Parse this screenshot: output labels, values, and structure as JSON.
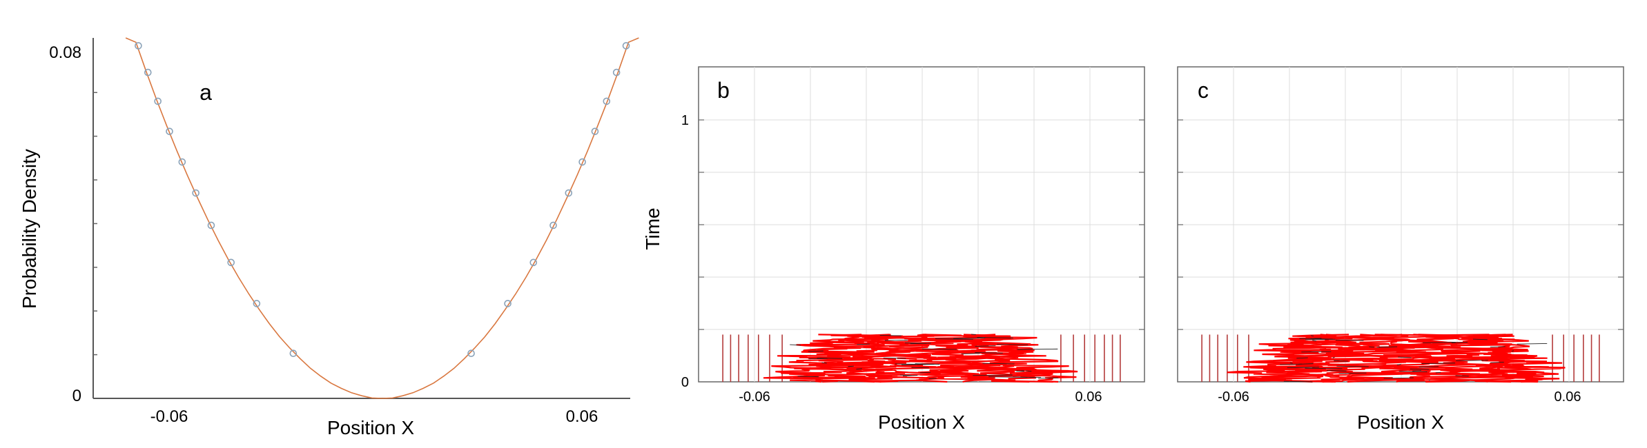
{
  "chart_data": [
    {
      "panel": "a",
      "type": "line",
      "xlabel": "Position X",
      "ylabel": "Probability Density",
      "x_ticks": [
        -0.06,
        0.06
      ],
      "x_tick_labels": [
        "-0.06",
        "0.06"
      ],
      "y_ticks": [
        0,
        0.08
      ],
      "y_tick_labels": [
        "0",
        "0.08"
      ],
      "xlim": [
        -0.0845,
        0.0725
      ],
      "ylim": [
        0,
        0.0825
      ],
      "series": [
        {
          "kind": "curve",
          "formula_note": "symmetric parabola",
          "x": [
            -0.075,
            -0.072,
            -0.069,
            -0.066,
            -0.063,
            -0.06,
            -0.057,
            -0.054,
            -0.051,
            -0.048,
            -0.045,
            -0.042,
            -0.039,
            -0.036,
            -0.033,
            -0.03,
            -0.027,
            -0.024,
            -0.021,
            -0.018,
            -0.015,
            -0.012,
            -0.009,
            -0.006,
            -0.003,
            0.0,
            0.003,
            0.006,
            0.009,
            0.012,
            0.015,
            0.018,
            0.021,
            0.024,
            0.027,
            0.03,
            0.033,
            0.036,
            0.039,
            0.042,
            0.045,
            0.048,
            0.051,
            0.054,
            0.057,
            0.06,
            0.063,
            0.066,
            0.069,
            0.072,
            0.075
          ],
          "y": [
            0.0884,
            0.0815,
            0.0748,
            0.0684,
            0.0624,
            0.0566,
            0.0511,
            0.0459,
            0.0409,
            0.0362,
            0.0318,
            0.0277,
            0.0239,
            0.0204,
            0.0171,
            0.0141,
            0.0115,
            0.0091,
            0.0069,
            0.0051,
            0.0035,
            0.0023,
            0.0013,
            0.0006,
            0.0001,
            0.0,
            0.0001,
            0.0006,
            0.0013,
            0.0023,
            0.0035,
            0.0051,
            0.0069,
            0.0091,
            0.0115,
            0.0141,
            0.0171,
            0.0204,
            0.0239,
            0.0277,
            0.0318,
            0.0362,
            0.0409,
            0.0459,
            0.0511,
            0.0566,
            0.0624,
            0.0684,
            0.0748,
            0.0815,
            0.0884
          ]
        },
        {
          "kind": "markers",
          "x": [
            -0.0713,
            -0.0685,
            -0.0656,
            -0.0622,
            -0.0585,
            -0.0545,
            -0.05,
            -0.0442,
            -0.0367,
            -0.026,
            0.026,
            0.0367,
            0.0442,
            0.05,
            0.0545,
            0.0585,
            0.0622,
            0.0656,
            0.0685,
            0.0713
          ],
          "y": [
            0.0807,
            0.0746,
            0.068,
            0.0611,
            0.0541,
            0.047,
            0.0396,
            0.0311,
            0.0217,
            0.0103,
            0.0103,
            0.0217,
            0.0311,
            0.0396,
            0.047,
            0.0541,
            0.0611,
            0.068,
            0.0746,
            0.0807
          ]
        }
      ],
      "colors": {
        "curve": "#d9773f",
        "marker": "#8aa2b8"
      }
    },
    {
      "panel": "b",
      "type": "line",
      "xlabel": "Position X",
      "ylabel": "Time",
      "x_ticks": [
        -0.06,
        0.06
      ],
      "x_tick_labels": [
        "-0.06",
        "0.06"
      ],
      "y_ticks": [
        0,
        1
      ],
      "y_tick_labels": [
        "0",
        "1"
      ],
      "xlim": [
        -0.08,
        0.08
      ],
      "ylim": [
        0,
        1.2
      ],
      "t_max": 0.18,
      "stationary_lines_x": [
        -0.0713,
        -0.0685,
        -0.0656,
        -0.0622,
        -0.0585,
        -0.0545,
        -0.05,
        0.05,
        0.0545,
        0.0585,
        0.0622,
        0.0656,
        0.0685,
        0.0713
      ],
      "moving_start_x": [
        -0.0442,
        -0.0367,
        -0.026,
        -0.015,
        -0.005,
        0.005,
        0.015,
        0.026,
        0.0367,
        0.0442
      ],
      "grid": true,
      "colors": {
        "line": "#b33a3a",
        "path": "#ff0000",
        "dark": "#202020"
      }
    },
    {
      "panel": "c",
      "type": "line",
      "xlabel": "Position X",
      "ylabel": "",
      "x_ticks": [
        -0.06,
        0.06
      ],
      "x_tick_labels": [
        "-0.06",
        "0.06"
      ],
      "xlim": [
        -0.08,
        0.08
      ],
      "ylim": [
        0,
        1.2
      ],
      "t_max": 0.18,
      "stationary_lines_x": [
        -0.0713,
        -0.0685,
        -0.0656,
        -0.0622,
        -0.0585,
        -0.0545,
        0.0545,
        0.0585,
        0.0622,
        0.0656,
        0.0685,
        0.0713
      ],
      "moving_start_x": [
        -0.05,
        -0.0442,
        -0.0367,
        -0.026,
        -0.015,
        -0.005,
        0.005,
        0.015,
        0.026,
        0.0367,
        0.0442,
        0.05
      ],
      "grid": true,
      "colors": {
        "line": "#b33a3a",
        "path": "#ff0000",
        "dark": "#202020"
      }
    }
  ],
  "panel_labels": [
    "a",
    "b",
    "c"
  ]
}
